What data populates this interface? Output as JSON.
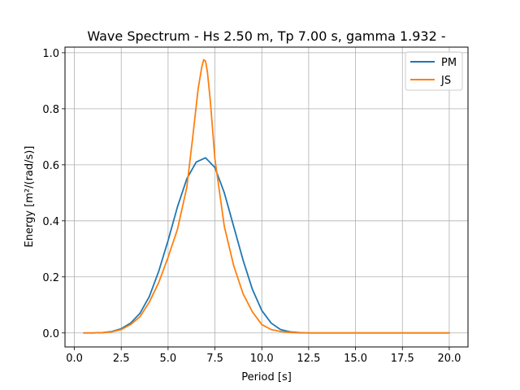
{
  "chart_data": {
    "type": "line",
    "title": "Wave Spectrum - Hs 2.50 m, Tp 7.00 s, gamma 1.932 -",
    "xlabel": "Period [s]",
    "ylabel": "Energy [m²/(rad/s)]",
    "xlim": [
      -0.5,
      21.0
    ],
    "ylim": [
      -0.05,
      1.02
    ],
    "xticks": [
      0.0,
      2.5,
      5.0,
      7.5,
      10.0,
      12.5,
      15.0,
      17.5,
      20.0
    ],
    "xtick_labels": [
      "0.0",
      "2.5",
      "5.0",
      "7.5",
      "10.0",
      "12.5",
      "15.0",
      "17.5",
      "20.0"
    ],
    "yticks": [
      0.0,
      0.2,
      0.4,
      0.6,
      0.8,
      1.0
    ],
    "ytick_labels": [
      "0.0",
      "0.2",
      "0.4",
      "0.6",
      "0.8",
      "1.0"
    ],
    "grid": true,
    "legend_position": "top-right",
    "series": [
      {
        "name": "PM",
        "color": "#1f77b4",
        "x": [
          0.5,
          1.0,
          1.5,
          2.0,
          2.5,
          3.0,
          3.5,
          4.0,
          4.5,
          5.0,
          5.5,
          6.0,
          6.5,
          7.0,
          7.5,
          8.0,
          8.5,
          9.0,
          9.5,
          10.0,
          10.5,
          11.0,
          11.5,
          12.0,
          12.5,
          13.0,
          14.0,
          15.0,
          16.0,
          17.0,
          18.0,
          19.0,
          20.0
        ],
        "values": [
          0.0,
          0.0,
          0.001,
          0.005,
          0.015,
          0.035,
          0.07,
          0.13,
          0.22,
          0.33,
          0.45,
          0.55,
          0.61,
          0.625,
          0.59,
          0.5,
          0.38,
          0.26,
          0.155,
          0.08,
          0.035,
          0.012,
          0.004,
          0.001,
          0.0,
          0.0,
          0.0,
          0.0,
          0.0,
          0.0,
          0.0,
          0.0,
          0.0
        ]
      },
      {
        "name": "JS",
        "color": "#ff7f0e",
        "x": [
          0.5,
          1.0,
          1.5,
          2.0,
          2.5,
          3.0,
          3.5,
          4.0,
          4.5,
          5.0,
          5.5,
          6.0,
          6.3,
          6.6,
          6.8,
          6.9,
          7.0,
          7.1,
          7.25,
          7.5,
          7.75,
          8.0,
          8.5,
          9.0,
          9.5,
          10.0,
          10.5,
          11.0,
          11.5,
          12.0,
          12.5,
          13.0,
          14.0,
          15.0,
          16.0,
          17.0,
          18.0,
          19.0,
          20.0
        ],
        "values": [
          0.0,
          0.0,
          0.001,
          0.004,
          0.012,
          0.03,
          0.058,
          0.11,
          0.18,
          0.27,
          0.37,
          0.52,
          0.69,
          0.87,
          0.95,
          0.975,
          0.97,
          0.93,
          0.83,
          0.62,
          0.5,
          0.38,
          0.24,
          0.14,
          0.075,
          0.03,
          0.012,
          0.005,
          0.002,
          0.0,
          0.0,
          0.0,
          0.0,
          0.0,
          0.0,
          0.0,
          0.0,
          0.0,
          0.0
        ]
      }
    ]
  }
}
